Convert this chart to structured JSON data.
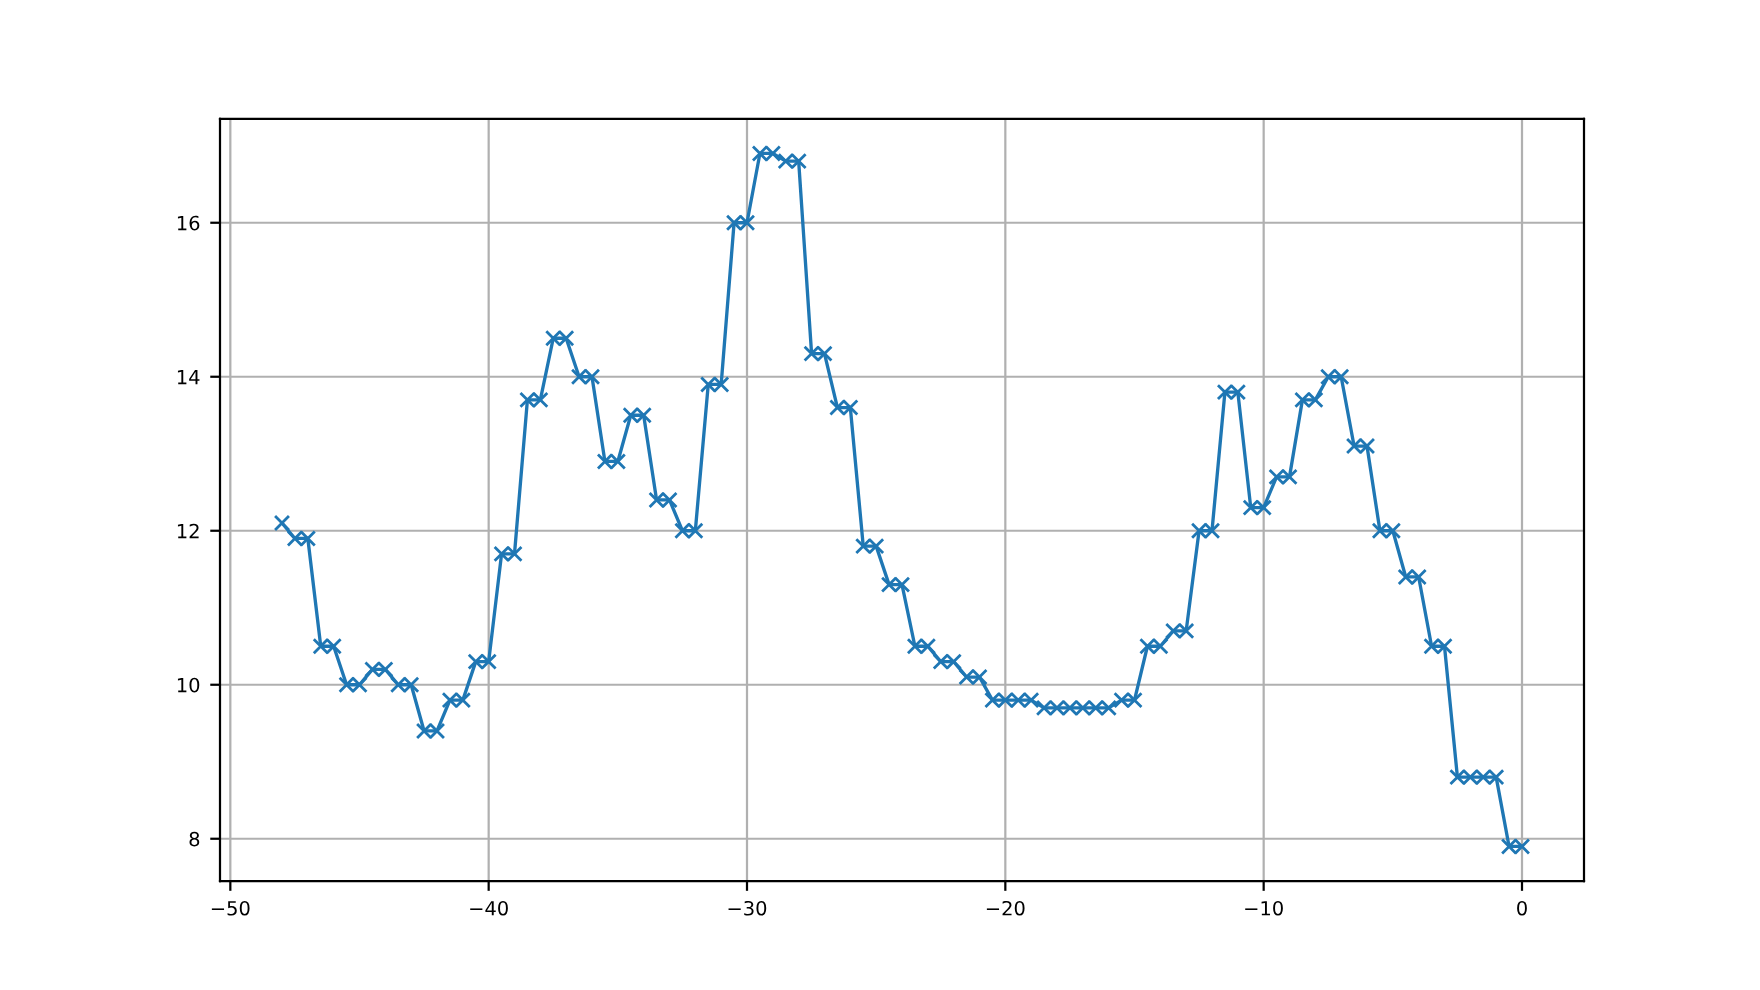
{
  "chart_data": {
    "type": "line",
    "marker": "cross",
    "grid": true,
    "xlim": [
      -50.4,
      2.4
    ],
    "xticks": [
      {
        "value": -50,
        "label": "−50"
      },
      {
        "value": -40,
        "label": "−40"
      },
      {
        "value": -30,
        "label": "−30"
      },
      {
        "value": -20,
        "label": "−20"
      },
      {
        "value": -10,
        "label": "−10"
      },
      0
    ],
    "ylim": [
      7.45,
      17.35
    ],
    "yticks": [
      8,
      10,
      12,
      14,
      16
    ],
    "series": [
      {
        "color": "#1f77b4",
        "x": [
          -48,
          -47.5,
          -47,
          -46.5,
          -46,
          -45.5,
          -45,
          -44.5,
          -44,
          -43.5,
          -43,
          -42.5,
          -42,
          -41.5,
          -41,
          -40.5,
          -40,
          -39.5,
          -39,
          -38.5,
          -38,
          -37.5,
          -37,
          -36.5,
          -36,
          -35.5,
          -35,
          -34.5,
          -34,
          -33.5,
          -33,
          -32.5,
          -32,
          -31.5,
          -31,
          -30.5,
          -30,
          -29.5,
          -29,
          -28.5,
          -28,
          -27.5,
          -27,
          -26.5,
          -26,
          -25.5,
          -25,
          -24.5,
          -24,
          -23.5,
          -23,
          -22.5,
          -22,
          -21.5,
          -21,
          -20.5,
          -20,
          -19.5,
          -19,
          -18.5,
          -18,
          -17.5,
          -17,
          -16.5,
          -16,
          -15.5,
          -15,
          -14.5,
          -14,
          -13.5,
          -13,
          -12.5,
          -12,
          -11.5,
          -11,
          -10.5,
          -10,
          -9.5,
          -9,
          -8.5,
          -8,
          -7.5,
          -7,
          -6.5,
          -6,
          -5.5,
          -5,
          -4.5,
          -4,
          -3.5,
          -3,
          -2.5,
          -2,
          -1.5,
          -1,
          -0.5,
          0
        ],
        "values": [
          12.1,
          11.9,
          11.9,
          10.5,
          10.5,
          10.0,
          10.0,
          10.2,
          10.2,
          10.0,
          10.0,
          9.4,
          9.4,
          9.8,
          9.8,
          10.3,
          10.3,
          11.7,
          11.7,
          13.7,
          13.7,
          14.5,
          14.5,
          14.0,
          14.0,
          12.9,
          12.9,
          13.5,
          13.5,
          12.4,
          12.4,
          12.0,
          12.0,
          13.9,
          13.9,
          16.0,
          16.0,
          16.9,
          16.9,
          16.8,
          16.8,
          14.3,
          14.3,
          13.6,
          13.6,
          11.8,
          11.8,
          11.3,
          11.3,
          10.5,
          10.5,
          10.3,
          10.3,
          10.1,
          10.1,
          9.8,
          9.8,
          9.8,
          9.8,
          9.7,
          9.7,
          9.7,
          9.7,
          9.7,
          9.7,
          9.8,
          9.8,
          10.5,
          10.5,
          10.7,
          10.7,
          12.0,
          12.0,
          13.8,
          13.8,
          12.3,
          12.3,
          12.7,
          12.7,
          13.7,
          13.7,
          14.0,
          14.0,
          13.1,
          13.1,
          12.0,
          12.0,
          11.4,
          11.4,
          10.5,
          10.5,
          8.8,
          8.8,
          8.8,
          8.8,
          7.9,
          7.9
        ]
      }
    ]
  }
}
